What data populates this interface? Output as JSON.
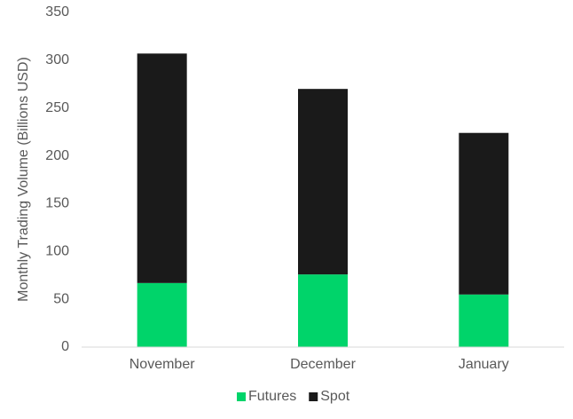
{
  "chart_data": {
    "type": "stacked_bar",
    "y_label": "Monthly Trading Volume (Billions USD)",
    "categories": [
      "November",
      "December",
      "January"
    ],
    "series": [
      {
        "name": "Futures",
        "color": "#00d46a",
        "values": [
          67,
          76,
          55
        ]
      },
      {
        "name": "Spot",
        "color": "#1a1a1a",
        "values": [
          240,
          194,
          169
        ]
      }
    ],
    "ylim": [
      0,
      350
    ],
    "yticks": [
      0,
      50,
      100,
      150,
      200,
      250,
      300,
      350
    ],
    "grid": false,
    "legend": "bottom"
  }
}
